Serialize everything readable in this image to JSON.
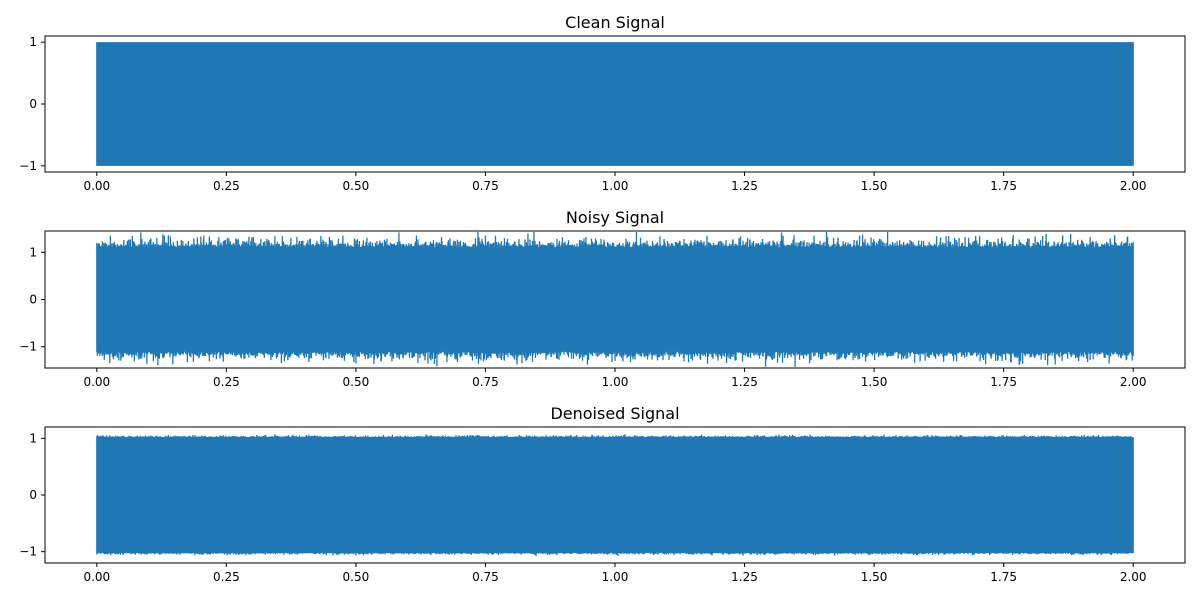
{
  "chart_data": [
    {
      "type": "line",
      "title": "Clean Signal",
      "xlabel": "",
      "ylabel": "",
      "xlim": [
        -0.1,
        2.1
      ],
      "ylim": [
        -1.1,
        1.1
      ],
      "xticks": [
        0.0,
        0.25,
        0.5,
        0.75,
        1.0,
        1.25,
        1.5,
        1.75,
        2.0
      ],
      "xtick_labels": [
        "0.00",
        "0.25",
        "0.50",
        "0.75",
        "1.00",
        "1.25",
        "1.50",
        "1.75",
        "2.00"
      ],
      "yticks": [
        -1,
        0,
        1
      ],
      "ytick_labels": [
        "−1",
        "0",
        "1"
      ],
      "grid": false,
      "series": [
        {
          "color": "#1f77b4",
          "x_range": [
            0.0,
            2.0
          ],
          "envelope_upper": 1.0,
          "envelope_lower": -1.0,
          "noise_amplitude": 0.0
        }
      ]
    },
    {
      "type": "line",
      "title": "Noisy Signal",
      "xlabel": "",
      "ylabel": "",
      "xlim": [
        -0.1,
        2.1
      ],
      "ylim": [
        -1.45,
        1.45
      ],
      "xticks": [
        0.0,
        0.25,
        0.5,
        0.75,
        1.0,
        1.25,
        1.5,
        1.75,
        2.0
      ],
      "xtick_labels": [
        "0.00",
        "0.25",
        "0.50",
        "0.75",
        "1.00",
        "1.25",
        "1.50",
        "1.75",
        "2.00"
      ],
      "yticks": [
        -1,
        0,
        1
      ],
      "ytick_labels": [
        "−1",
        "0",
        "1"
      ],
      "grid": false,
      "series": [
        {
          "color": "#1f77b4",
          "x_range": [
            0.0,
            2.0
          ],
          "envelope_upper": 1.1,
          "envelope_lower": -1.1,
          "noise_amplitude": 0.3
        }
      ]
    },
    {
      "type": "line",
      "title": "Denoised Signal",
      "xlabel": "",
      "ylabel": "",
      "xlim": [
        -0.1,
        2.1
      ],
      "ylim": [
        -1.2,
        1.2
      ],
      "xticks": [
        0.0,
        0.25,
        0.5,
        0.75,
        1.0,
        1.25,
        1.5,
        1.75,
        2.0
      ],
      "xtick_labels": [
        "0.00",
        "0.25",
        "0.50",
        "0.75",
        "1.00",
        "1.25",
        "1.50",
        "1.75",
        "2.00"
      ],
      "yticks": [
        -1,
        0,
        1
      ],
      "ytick_labels": [
        "−1",
        "0",
        "1"
      ],
      "grid": false,
      "series": [
        {
          "color": "#1f77b4",
          "x_range": [
            0.0,
            2.0
          ],
          "envelope_upper": 1.02,
          "envelope_lower": -1.02,
          "noise_amplitude": 0.05
        }
      ]
    }
  ]
}
